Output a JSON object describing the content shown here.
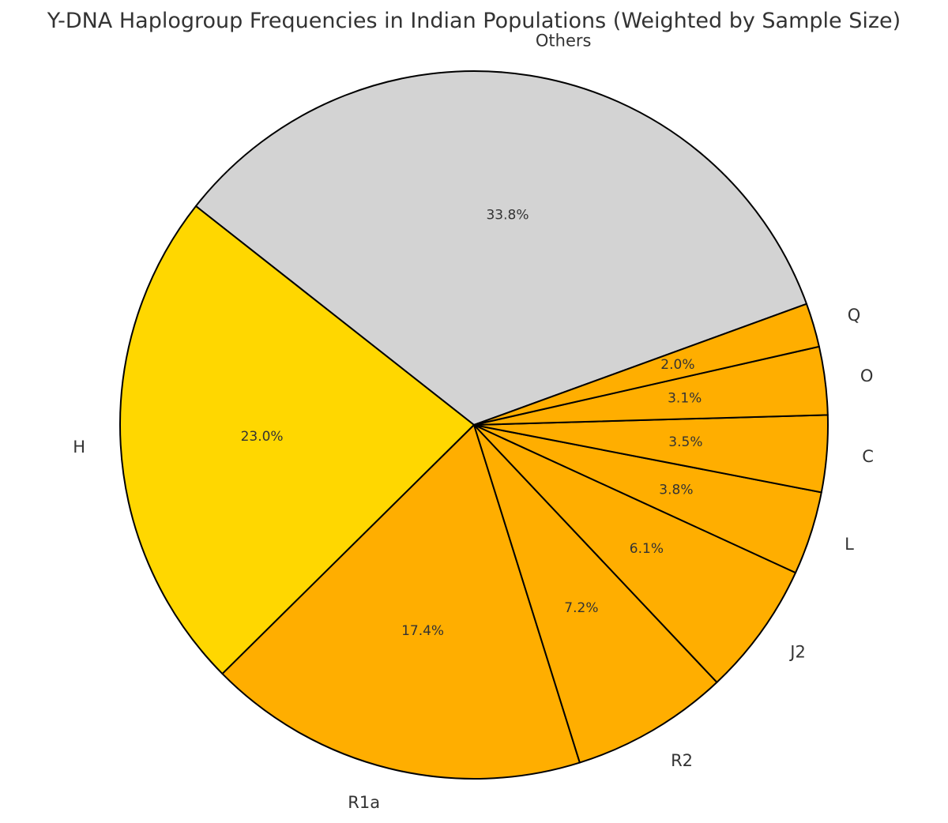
{
  "chart_data": {
    "type": "pie",
    "title": "Y-DNA Haplogroup Frequencies in Indian Populations (Weighted by Sample Size)",
    "slices": [
      {
        "label": "Others",
        "value": 33.8,
        "pct_label": "33.8%",
        "color": "#d3d3d3"
      },
      {
        "label": "H",
        "value": 23.0,
        "pct_label": "23.0%",
        "color": "#ffd700"
      },
      {
        "label": "R1a",
        "value": 17.4,
        "pct_label": "17.4%",
        "color": "#ffae00"
      },
      {
        "label": "R2",
        "value": 7.2,
        "pct_label": "7.2%",
        "color": "#ffae00"
      },
      {
        "label": "J2",
        "value": 6.1,
        "pct_label": "6.1%",
        "color": "#ffae00"
      },
      {
        "label": "L",
        "value": 3.8,
        "pct_label": "3.8%",
        "color": "#ffae00"
      },
      {
        "label": "C",
        "value": 3.5,
        "pct_label": "3.5%",
        "color": "#ffae00"
      },
      {
        "label": "O",
        "value": 3.1,
        "pct_label": "3.1%",
        "color": "#ffae00"
      },
      {
        "label": "Q",
        "value": 2.0,
        "pct_label": "2.0%",
        "color": "#ffae00"
      }
    ],
    "start_angle": 20,
    "direction": "counterclockwise",
    "legend": "none"
  }
}
